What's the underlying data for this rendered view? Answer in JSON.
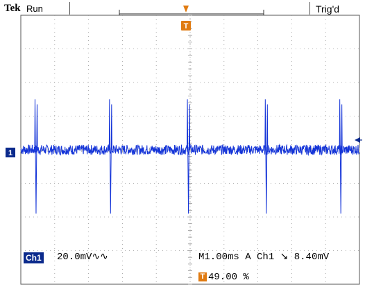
{
  "header": {
    "brand": "Tek",
    "status": "Run",
    "trigger_state": "Trig'd"
  },
  "channel": {
    "badge": "Ch1",
    "marker": "1",
    "scale": "20.0mV∿∿"
  },
  "readout": {
    "timebase": "M1.00ms  A  Ch1  ↘  8.40mV",
    "trigger_marker": "T",
    "trigger_position": "49.00 %"
  },
  "colors": {
    "trace": "#1434d8",
    "trigger": "#e07a10",
    "grid": "#9a9a9a",
    "channel_badge": "#0b2a8c"
  },
  "chart_data": {
    "type": "line",
    "title": "",
    "xlabel": "",
    "ylabel": "",
    "x_unit": "ms",
    "y_unit": "mV",
    "x_divisions": 10,
    "y_divisions": 8,
    "x_per_div": 1.0,
    "y_per_div": 20.0,
    "xlim": [
      -5,
      5
    ],
    "ylim": [
      -80,
      80
    ],
    "grid": true,
    "trigger_level_mV": 8.4,
    "trigger_position_percent": 49.0,
    "series": [
      {
        "baseline_mV": 0,
        "noise_amplitude_mV": 3,
        "spikes": [
          {
            "t_ms": -4.55,
            "peak_mV": 30,
            "trough_mV": -38
          },
          {
            "t_ms": -2.35,
            "peak_mV": 30,
            "trough_mV": -38
          },
          {
            "t_ms": -0.05,
            "peak_mV": 30,
            "trough_mV": -38
          },
          {
            "t_ms": 2.25,
            "peak_mV": 30,
            "trough_mV": -38
          },
          {
            "t_ms": 4.45,
            "peak_mV": 30,
            "trough_mV": -38
          }
        ]
      }
    ]
  }
}
